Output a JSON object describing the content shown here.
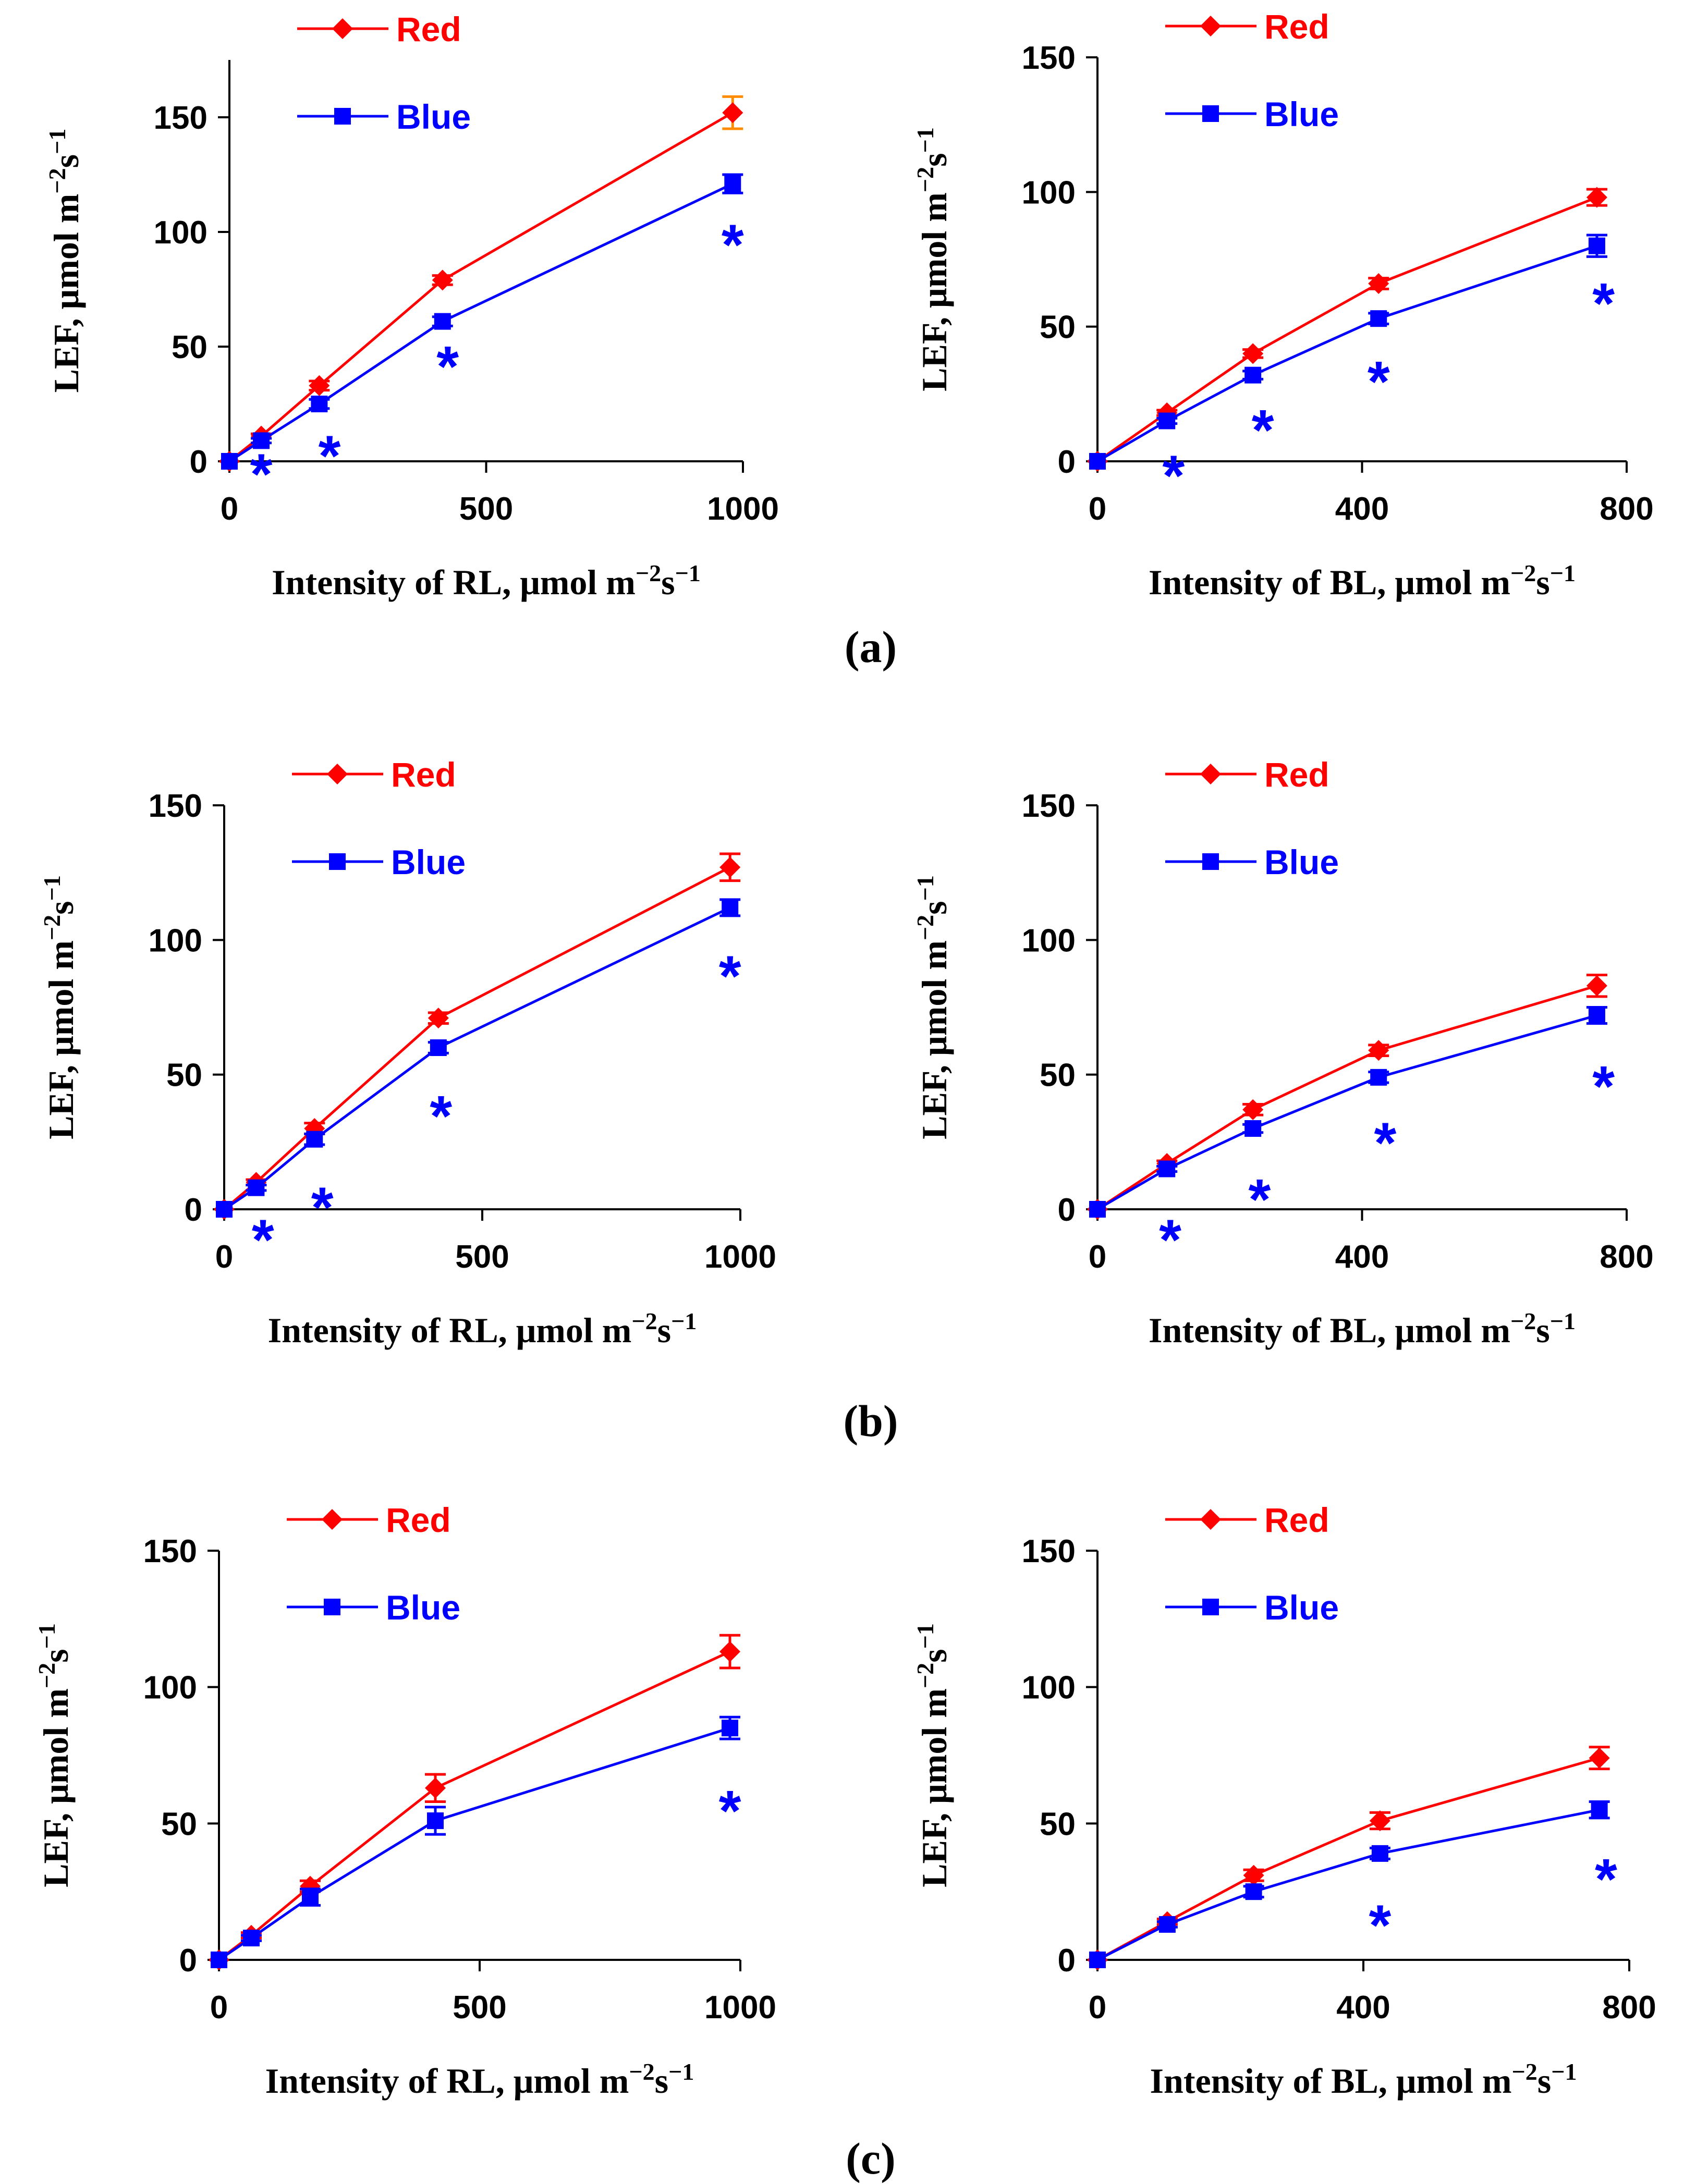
{
  "colors": {
    "red": "#ff0000",
    "blue": "#0000ff",
    "red_error": "#ff8c00",
    "axis": "#000000"
  },
  "panel_labels": [
    "(a)",
    "(b)",
    "(c)"
  ],
  "chart_data": [
    {
      "type": "line",
      "id": "a-rl",
      "panel": "(a)",
      "xlabel": "Intensity of RL, μmol m−2s−1",
      "ylabel": "LEF, μmol m−2s−1",
      "xlim": [
        0,
        1000
      ],
      "ylim": [
        0,
        175
      ],
      "xticks": [
        0,
        500,
        1000
      ],
      "yticks": [
        0,
        50,
        100,
        150
      ],
      "x": [
        0,
        62,
        175,
        415,
        980
      ],
      "series": [
        {
          "name": "Red",
          "color": "#ff0000",
          "marker": "diamond",
          "values": [
            0,
            11,
            33,
            79,
            152
          ],
          "errors": [
            0,
            1,
            2,
            2,
            7
          ]
        },
        {
          "name": "Blue",
          "color": "#0000ff",
          "marker": "square",
          "values": [
            0,
            9,
            25,
            61,
            121
          ],
          "errors": [
            0,
            1,
            2,
            2,
            4
          ]
        }
      ],
      "significance": [
        {
          "x": 62,
          "y": -4,
          "label": "*"
        },
        {
          "x": 195,
          "y": 4,
          "label": "*"
        },
        {
          "x": 425,
          "y": 43,
          "label": "*"
        },
        {
          "x": 980,
          "y": 96,
          "label": "*"
        }
      ]
    },
    {
      "type": "line",
      "id": "a-bl",
      "panel": "(a)",
      "xlabel": "Intensity of BL, μmol m−2s−1",
      "ylabel": "LEF, μmol m−2s−1",
      "xlim": [
        0,
        800
      ],
      "ylim": [
        0,
        150
      ],
      "xticks": [
        0,
        400,
        800
      ],
      "yticks": [
        0,
        50,
        100,
        150
      ],
      "x": [
        0,
        105,
        235,
        425,
        755
      ],
      "series": [
        {
          "name": "Red",
          "color": "#ff0000",
          "marker": "diamond",
          "values": [
            0,
            18,
            40,
            66,
            98
          ],
          "errors": [
            0,
            1,
            1.5,
            2,
            3
          ]
        },
        {
          "name": "Blue",
          "color": "#0000ff",
          "marker": "square",
          "values": [
            0,
            15,
            32,
            53,
            80
          ],
          "errors": [
            0,
            1,
            1.5,
            2,
            4
          ]
        }
      ],
      "significance": [
        {
          "x": 115,
          "y": -4,
          "label": "*"
        },
        {
          "x": 250,
          "y": 13,
          "label": "*"
        },
        {
          "x": 425,
          "y": 31,
          "label": "*"
        },
        {
          "x": 765,
          "y": 60,
          "label": "*"
        }
      ]
    },
    {
      "type": "line",
      "id": "b-rl",
      "panel": "(b)",
      "xlabel": "Intensity of RL, μmol m−2s−1",
      "ylabel": "LEF, μmol m−2s−1",
      "xlim": [
        0,
        1000
      ],
      "ylim": [
        0,
        150
      ],
      "xticks": [
        0,
        500,
        1000
      ],
      "yticks": [
        0,
        50,
        100,
        150
      ],
      "x": [
        0,
        62,
        175,
        415,
        980
      ],
      "series": [
        {
          "name": "Red",
          "color": "#ff0000",
          "marker": "diamond",
          "values": [
            0,
            10,
            30,
            71,
            127
          ],
          "errors": [
            0,
            1,
            2,
            2,
            5
          ]
        },
        {
          "name": "Blue",
          "color": "#0000ff",
          "marker": "square",
          "values": [
            0,
            8,
            26,
            60,
            112
          ],
          "errors": [
            0,
            1,
            2,
            2,
            3
          ]
        }
      ],
      "significance": [
        {
          "x": 75,
          "y": -10,
          "label": "*"
        },
        {
          "x": 190,
          "y": 2,
          "label": "*"
        },
        {
          "x": 420,
          "y": 36,
          "label": "*"
        },
        {
          "x": 980,
          "y": 88,
          "label": "*"
        }
      ]
    },
    {
      "type": "line",
      "id": "b-bl",
      "panel": "(b)",
      "xlabel": "Intensity of BL, μmol m−2s−1",
      "ylabel": "LEF, μmol m−2s−1",
      "xlim": [
        0,
        800
      ],
      "ylim": [
        0,
        150
      ],
      "xticks": [
        0,
        400,
        800
      ],
      "yticks": [
        0,
        50,
        100,
        150
      ],
      "x": [
        0,
        105,
        235,
        425,
        755
      ],
      "series": [
        {
          "name": "Red",
          "color": "#ff0000",
          "marker": "diamond",
          "values": [
            0,
            17,
            37,
            59,
            83
          ],
          "errors": [
            0,
            1,
            2,
            2,
            4
          ]
        },
        {
          "name": "Blue",
          "color": "#0000ff",
          "marker": "square",
          "values": [
            0,
            15,
            30,
            49,
            72
          ],
          "errors": [
            0,
            1,
            1.5,
            2,
            3
          ]
        }
      ],
      "significance": [
        {
          "x": 110,
          "y": -10,
          "label": "*"
        },
        {
          "x": 245,
          "y": 5,
          "label": "*"
        },
        {
          "x": 435,
          "y": 26,
          "label": "*"
        },
        {
          "x": 765,
          "y": 47,
          "label": "*"
        }
      ]
    },
    {
      "type": "line",
      "id": "c-rl",
      "panel": "(c)",
      "xlabel": "Intensity of RL, μmol m−2s−1",
      "ylabel": "LEF, μmol m−2s−1",
      "xlim": [
        0,
        1000
      ],
      "ylim": [
        0,
        150
      ],
      "xticks": [
        0,
        500,
        1000
      ],
      "yticks": [
        0,
        50,
        100,
        150
      ],
      "x": [
        0,
        62,
        175,
        415,
        980
      ],
      "series": [
        {
          "name": "Red",
          "color": "#ff0000",
          "marker": "diamond",
          "values": [
            0,
            9,
            27,
            63,
            113
          ],
          "errors": [
            0,
            1,
            2,
            5,
            6
          ]
        },
        {
          "name": "Blue",
          "color": "#0000ff",
          "marker": "square",
          "values": [
            0,
            8,
            23,
            51,
            85
          ],
          "errors": [
            0,
            1,
            3,
            5,
            4
          ]
        }
      ],
      "significance": [
        {
          "x": 980,
          "y": 56,
          "label": "*"
        }
      ]
    },
    {
      "type": "line",
      "id": "c-bl",
      "panel": "(c)",
      "xlabel": "Intensity of BL, μmol m−2s−1",
      "ylabel": "LEF, μmol m−2s−1",
      "xlim": [
        0,
        800
      ],
      "ylim": [
        0,
        150
      ],
      "xticks": [
        0,
        400,
        800
      ],
      "yticks": [
        0,
        50,
        100,
        150
      ],
      "x": [
        0,
        105,
        235,
        425,
        755
      ],
      "series": [
        {
          "name": "Red",
          "color": "#ff0000",
          "marker": "diamond",
          "values": [
            0,
            14,
            31,
            51,
            74
          ],
          "errors": [
            0,
            1,
            2,
            3,
            4
          ]
        },
        {
          "name": "Blue",
          "color": "#0000ff",
          "marker": "square",
          "values": [
            0,
            13,
            25,
            39,
            55
          ],
          "errors": [
            0,
            1,
            2,
            2,
            3
          ]
        }
      ],
      "significance": [
        {
          "x": 425,
          "y": 14,
          "label": "*"
        },
        {
          "x": 765,
          "y": 31,
          "label": "*"
        }
      ]
    }
  ]
}
